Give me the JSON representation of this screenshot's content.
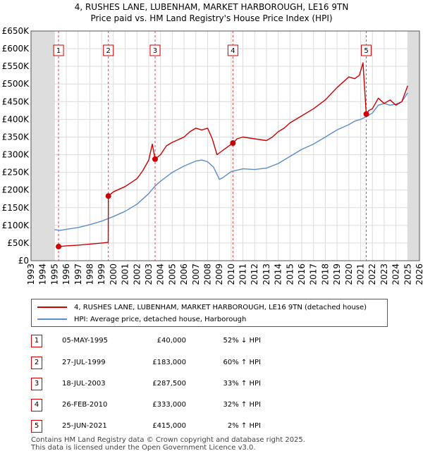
{
  "title_line1": "4, RUSHES LANE, LUBENHAM, MARKET HARBOROUGH, LE16 9TN",
  "title_line2": "Price paid vs. HM Land Registry's House Price Index (HPI)",
  "chart_data": {
    "type": "line",
    "title": "4, RUSHES LANE, LUBENHAM, MARKET HARBOROUGH, LE16 9TN - Price paid vs. HM Land Registry's House Price Index (HPI)",
    "xlim": [
      1993,
      2026
    ],
    "ylim": [
      0,
      650000
    ],
    "x_ticks": [
      1993,
      1994,
      1995,
      1996,
      1997,
      1998,
      1999,
      2000,
      2001,
      2002,
      2003,
      2004,
      2005,
      2006,
      2007,
      2008,
      2009,
      2010,
      2011,
      2012,
      2013,
      2014,
      2015,
      2016,
      2017,
      2018,
      2019,
      2020,
      2021,
      2022,
      2023,
      2024,
      2025,
      2026
    ],
    "y_ticks": [
      {
        "value": 0,
        "label": "£0"
      },
      {
        "value": 50000,
        "label": "£50K"
      },
      {
        "value": 100000,
        "label": "£100K"
      },
      {
        "value": 150000,
        "label": "£150K"
      },
      {
        "value": 200000,
        "label": "£200K"
      },
      {
        "value": 250000,
        "label": "£250K"
      },
      {
        "value": 300000,
        "label": "£300K"
      },
      {
        "value": 350000,
        "label": "£350K"
      },
      {
        "value": 400000,
        "label": "£400K"
      },
      {
        "value": 450000,
        "label": "£450K"
      },
      {
        "value": 500000,
        "label": "£500K"
      },
      {
        "value": 550000,
        "label": "£550K"
      },
      {
        "value": 600000,
        "label": "£600K"
      },
      {
        "value": 650000,
        "label": "£650K"
      }
    ],
    "shaded_ranges": [
      [
        1993,
        1995.0
      ],
      [
        2025.0,
        2026
      ]
    ],
    "series": [
      {
        "name": "4, RUSHES LANE, LUBENHAM, MARKET HARBOROUGH, LE16 9TN (detached house)",
        "color": "#cc0000",
        "x": [
          1995.34,
          1996,
          1997,
          1998,
          1999.0,
          1999.56,
          1999.57,
          2000,
          2001,
          2002,
          2002.5,
          2003,
          2003.3,
          2003.54,
          2004,
          2004.5,
          2005,
          2006,
          2006.5,
          2007,
          2007.5,
          2008,
          2008.4,
          2008.8,
          2009.2,
          2010.15,
          2010.5,
          2011,
          2012,
          2013,
          2013.5,
          2014,
          2014.5,
          2015,
          2016,
          2017,
          2018,
          2019,
          2019.5,
          2020,
          2020.5,
          2020.9,
          2021.2,
          2021.48,
          2021.7,
          2022,
          2022.5,
          2023,
          2023.5,
          2024,
          2024.5,
          2025.0
        ],
        "y": [
          40000,
          42000,
          44000,
          47000,
          50000,
          52000,
          183000,
          195000,
          210000,
          232000,
          255000,
          285000,
          330000,
          287500,
          300000,
          325000,
          335000,
          350000,
          365000,
          375000,
          370000,
          375000,
          345000,
          300000,
          310000,
          333000,
          345000,
          350000,
          345000,
          340000,
          350000,
          365000,
          375000,
          390000,
          410000,
          430000,
          455000,
          490000,
          505000,
          520000,
          515000,
          525000,
          560000,
          415000,
          425000,
          430000,
          460000,
          445000,
          455000,
          440000,
          450000,
          495000
        ]
      },
      {
        "name": "HPI: Average price, detached house, Harborough",
        "color": "#5b8ec9",
        "x": [
          1995.0,
          1995.5,
          1996,
          1997,
          1998,
          1999,
          2000,
          2001,
          2002,
          2003,
          2003.5,
          2004,
          2005,
          2006,
          2007,
          2007.5,
          2008,
          2008.5,
          2009,
          2009.3,
          2010,
          2011,
          2012,
          2013,
          2014,
          2015,
          2016,
          2017,
          2018,
          2019,
          2020,
          2020.5,
          2021,
          2021.5,
          2022,
          2022.5,
          2023,
          2023.5,
          2024,
          2024.5,
          2025.0
        ],
        "y": [
          88000,
          86000,
          89000,
          94000,
          102000,
          112000,
          125000,
          140000,
          160000,
          190000,
          210000,
          225000,
          250000,
          268000,
          282000,
          285000,
          280000,
          265000,
          230000,
          235000,
          252000,
          260000,
          258000,
          262000,
          275000,
          295000,
          315000,
          330000,
          350000,
          370000,
          385000,
          395000,
          400000,
          408000,
          418000,
          440000,
          445000,
          440000,
          443000,
          450000,
          475000
        ]
      }
    ],
    "sale_markers": [
      {
        "label": "1",
        "x": 1995.34,
        "y": 40000
      },
      {
        "label": "2",
        "x": 1999.57,
        "y": 183000
      },
      {
        "label": "3",
        "x": 2003.54,
        "y": 287500
      },
      {
        "label": "4",
        "x": 2010.15,
        "y": 333000
      },
      {
        "label": "5",
        "x": 2021.48,
        "y": 415000
      }
    ]
  },
  "legend": {
    "series1": "4, RUSHES LANE, LUBENHAM, MARKET HARBOROUGH, LE16 9TN (detached house)",
    "series2": "HPI: Average price, detached house, Harborough"
  },
  "sales": [
    {
      "num": "1",
      "date": "05-MAY-1995",
      "price": "£40,000",
      "hpi": "52% ↓ HPI"
    },
    {
      "num": "2",
      "date": "27-JUL-1999",
      "price": "£183,000",
      "hpi": "60% ↑ HPI"
    },
    {
      "num": "3",
      "date": "18-JUL-2003",
      "price": "£287,500",
      "hpi": "33% ↑ HPI"
    },
    {
      "num": "4",
      "date": "26-FEB-2010",
      "price": "£333,000",
      "hpi": "32% ↑ HPI"
    },
    {
      "num": "5",
      "date": "25-JUN-2021",
      "price": "£415,000",
      "hpi": "2% ↑ HPI"
    }
  ],
  "footer_line1": "Contains HM Land Registry data © Crown copyright and database right 2025.",
  "footer_line2": "This data is licensed under the Open Government Licence v3.0.",
  "colors": {
    "price_line": "#cc0000",
    "hpi_line": "#5b8ec9",
    "shade": "#dddddd",
    "grid": "#dcdcdc"
  }
}
